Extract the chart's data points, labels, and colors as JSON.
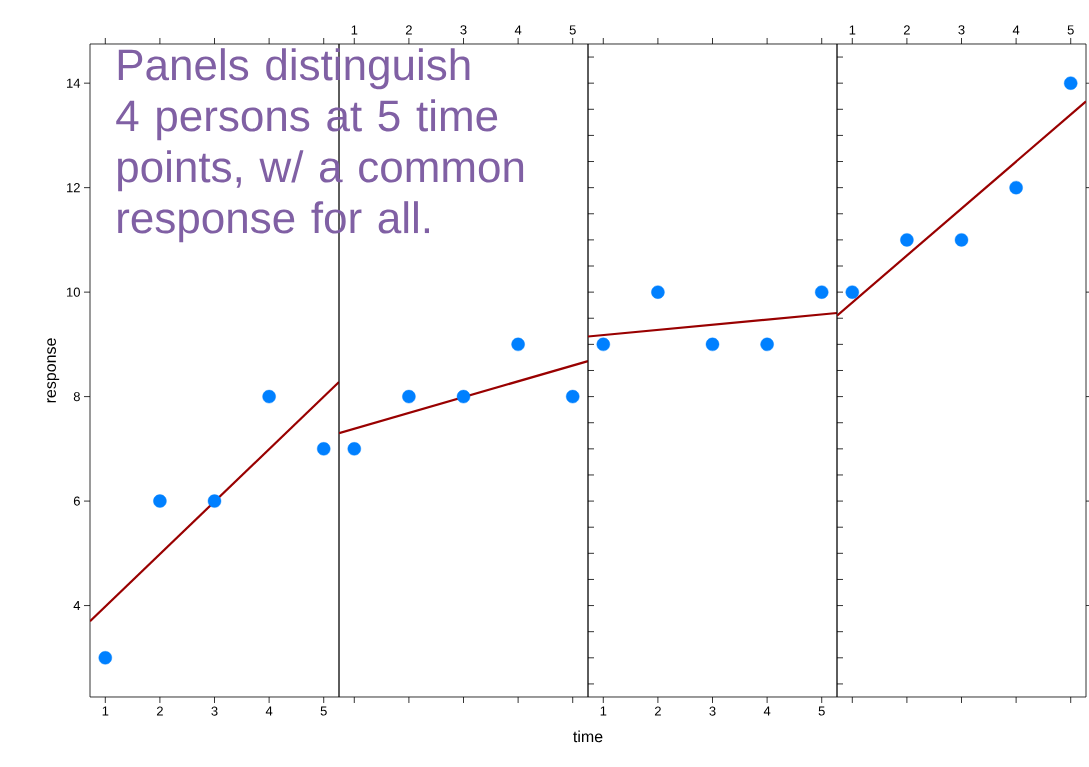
{
  "chart_data": [
    {
      "type": "scatter",
      "ylabel": "response",
      "annotations": [
        "Panels distinguish 4 persons at 5 time points, w/ a common response for all."
      ],
      "xlim": [
        0.72,
        5.28
      ],
      "ylim": [
        2.25,
        14.75
      ],
      "xticks": [
        1,
        2,
        3,
        4,
        5
      ],
      "yticks": [
        4,
        6,
        8,
        10,
        12,
        14
      ],
      "marker": "circle",
      "series": [
        {
          "color": "#0080ff",
          "x": [
            1,
            2,
            3,
            4,
            5
          ],
          "values": [
            3,
            6,
            6,
            8,
            7
          ]
        },
        {
          "type": "line",
          "color": "#990000",
          "marker": "none",
          "x": [
            0.72,
            5.28
          ],
          "values": [
            3.7,
            8.28
          ]
        }
      ]
    },
    {
      "type": "scatter",
      "xlabel": "time",
      "xlim": [
        0.72,
        5.28
      ],
      "ylim": [
        2.25,
        14.75
      ],
      "xticks": [
        1,
        2,
        3,
        4,
        5
      ],
      "tick_labels": "x",
      "marker": "circle",
      "series": [
        {
          "color": "#0080ff",
          "x": [
            1,
            2,
            3,
            4,
            5
          ],
          "values": [
            7,
            8,
            8,
            9,
            8
          ]
        },
        {
          "type": "line",
          "color": "#990000",
          "marker": "none",
          "x": [
            0.72,
            5.28
          ],
          "values": [
            7.3,
            8.68
          ]
        }
      ]
    },
    {
      "type": "scatter",
      "xlim": [
        0.72,
        5.28
      ],
      "ylim": [
        2.25,
        14.75
      ],
      "xticks": [
        1,
        2,
        3,
        4,
        5
      ],
      "tick_labels": "x",
      "marker": "circle",
      "series": [
        {
          "color": "#0080ff",
          "x": [
            1,
            2,
            3,
            4,
            5
          ],
          "values": [
            9,
            10,
            9,
            9,
            10
          ]
        },
        {
          "type": "line",
          "color": "#990000",
          "marker": "none",
          "x": [
            0.72,
            5.28
          ],
          "values": [
            9.15,
            9.6
          ]
        }
      ]
    },
    {
      "type": "scatter",
      "xlim": [
        0.72,
        5.28
      ],
      "ylim": [
        2.25,
        14.75
      ],
      "xticks": [
        1,
        2,
        3,
        4,
        5
      ],
      "yticks": [
        4,
        6,
        8,
        10,
        12,
        14
      ],
      "tick_labels": "x",
      "marker": "circle",
      "series": [
        {
          "color": "#0080ff",
          "x": [
            1,
            2,
            3,
            4,
            5
          ],
          "values": [
            10,
            11,
            11,
            12,
            14
          ]
        },
        {
          "type": "line",
          "color": "#990000",
          "marker": "none",
          "x": [
            0.72,
            5.28
          ],
          "values": [
            9.55,
            13.65
          ]
        }
      ]
    }
  ]
}
